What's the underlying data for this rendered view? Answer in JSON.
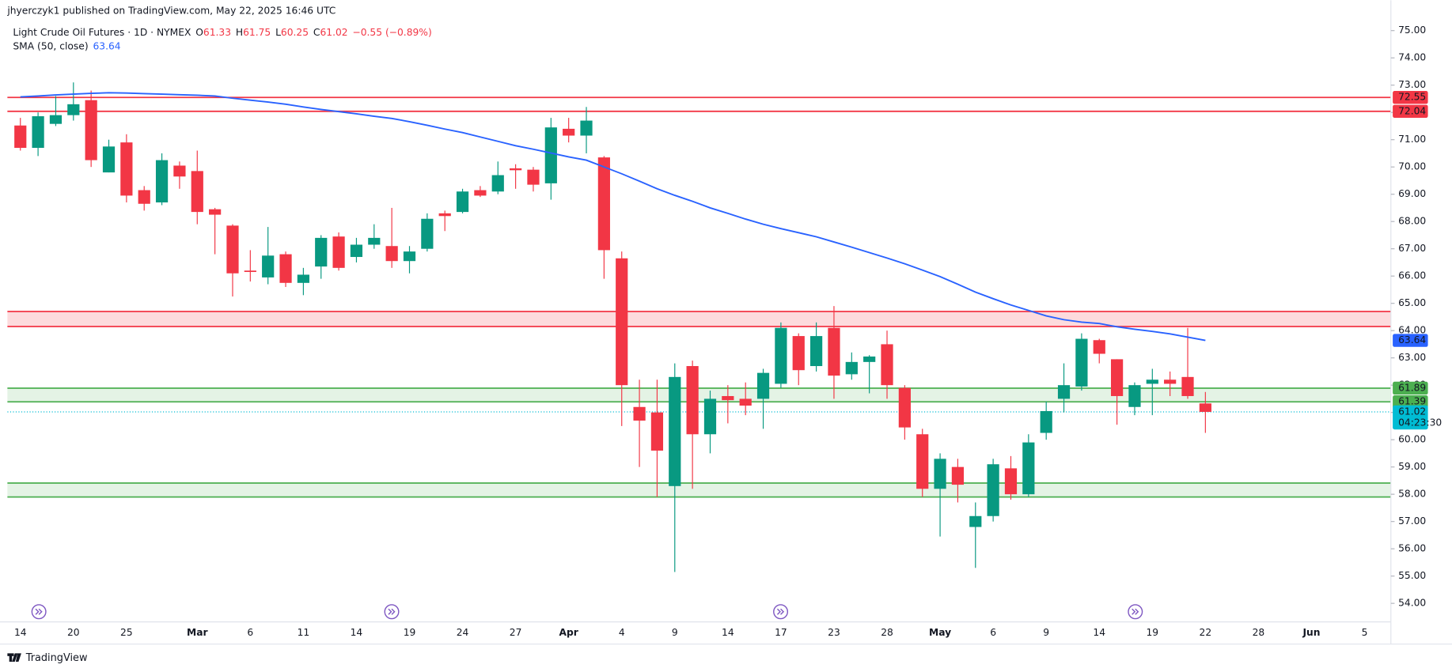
{
  "header": {
    "published": "jhyerczyk1 published on TradingView.com, May 22, 2025 16:46 UTC",
    "symbol": "Light Crude Oil Futures · 1D · NYMEX",
    "fields": [
      {
        "label": "O",
        "value": 61.33
      },
      {
        "label": "H",
        "value": 61.75
      },
      {
        "label": "L",
        "value": 60.25
      },
      {
        "label": "C",
        "value": 61.02
      }
    ],
    "change": "−0.55 (−0.89%)",
    "color": "#f23645",
    "indicator": {
      "name": "SMA (50, close)",
      "value": 63.64,
      "color": "#2962ff"
    }
  },
  "chart_data": {
    "type": "candlestick",
    "open": [
      71.52,
      70.7,
      71.58,
      71.9,
      72.45,
      69.8,
      70.9,
      69.15,
      68.7,
      70.05,
      69.85,
      68.45,
      67.85,
      66.2,
      65.95,
      66.8,
      65.75,
      66.35,
      67.45,
      66.7,
      67.15,
      67.1,
      66.55,
      67.0,
      68.3,
      68.35,
      69.15,
      69.1,
      69.95,
      69.9,
      69.4,
      71.4,
      71.15,
      70.35,
      66.65,
      61.2,
      61.0,
      58.3,
      62.7,
      60.2,
      61.6,
      61.5,
      61.5,
      62.05,
      63.8,
      62.7,
      64.1,
      62.4,
      62.85,
      63.5,
      61.9,
      60.2,
      58.2,
      59.0,
      56.8,
      57.2,
      58.95,
      58.0,
      60.25,
      61.5,
      61.95,
      63.65,
      62.95,
      61.2,
      62.05,
      62.2,
      62.3,
      61.33
    ],
    "high": [
      71.8,
      72.0,
      72.6,
      73.1,
      72.8,
      71.0,
      71.2,
      69.3,
      70.5,
      70.2,
      70.6,
      68.5,
      67.9,
      66.95,
      67.8,
      66.9,
      66.3,
      67.5,
      67.6,
      67.4,
      67.9,
      68.5,
      67.1,
      68.3,
      68.4,
      69.2,
      69.3,
      70.2,
      70.1,
      70.0,
      71.8,
      71.8,
      72.2,
      70.4,
      66.9,
      62.2,
      62.2,
      62.8,
      62.9,
      61.8,
      62.0,
      62.1,
      62.6,
      64.3,
      63.9,
      64.3,
      64.9,
      63.2,
      63.1,
      64.0,
      62.0,
      60.4,
      59.5,
      59.3,
      57.7,
      59.3,
      59.4,
      60.2,
      61.4,
      62.8,
      63.9,
      63.7,
      62.95,
      62.1,
      62.6,
      62.5,
      64.1,
      61.75
    ],
    "low": [
      70.6,
      70.4,
      71.5,
      71.7,
      70.0,
      69.8,
      68.7,
      68.4,
      68.6,
      69.2,
      67.9,
      66.8,
      65.25,
      65.8,
      65.7,
      65.6,
      65.3,
      65.9,
      66.2,
      66.5,
      67.0,
      66.3,
      66.1,
      66.9,
      67.65,
      68.3,
      68.9,
      69.0,
      69.2,
      69.1,
      68.8,
      70.9,
      70.5,
      65.9,
      60.5,
      59.0,
      57.9,
      55.15,
      58.2,
      59.5,
      60.6,
      60.9,
      60.4,
      61.9,
      62.0,
      62.5,
      61.5,
      62.2,
      61.7,
      61.5,
      60.0,
      57.9,
      56.45,
      57.7,
      55.3,
      57.0,
      57.8,
      57.9,
      60.0,
      61.0,
      61.8,
      62.8,
      60.55,
      60.9,
      60.9,
      61.6,
      61.5,
      60.25
    ],
    "close": [
      70.7,
      71.86,
      71.9,
      72.3,
      70.25,
      70.75,
      68.95,
      68.65,
      70.25,
      69.65,
      68.35,
      68.25,
      66.1,
      66.15,
      66.75,
      65.75,
      66.05,
      67.4,
      66.3,
      67.15,
      67.4,
      66.55,
      66.9,
      68.1,
      68.2,
      69.1,
      68.95,
      69.7,
      69.88,
      69.35,
      71.45,
      71.15,
      71.7,
      66.95,
      62.0,
      60.7,
      59.6,
      62.3,
      60.2,
      61.5,
      61.45,
      61.25,
      62.45,
      64.1,
      62.55,
      63.8,
      62.35,
      62.85,
      63.05,
      62.0,
      60.45,
      58.2,
      59.3,
      58.35,
      57.2,
      59.1,
      58.0,
      59.9,
      61.05,
      62.0,
      63.7,
      63.15,
      61.6,
      62.0,
      62.2,
      62.05,
      61.6,
      61.02
    ],
    "up_color": "#089981",
    "down_color": "#f23645",
    "sma": {
      "color": "#2962ff",
      "values": [
        72.57,
        72.6,
        72.64,
        72.67,
        72.7,
        72.72,
        72.71,
        72.69,
        72.67,
        72.65,
        72.63,
        72.6,
        72.52,
        72.45,
        72.38,
        72.3,
        72.2,
        72.11,
        72.03,
        71.95,
        71.86,
        71.78,
        71.66,
        71.53,
        71.39,
        71.26,
        71.1,
        70.94,
        70.78,
        70.65,
        70.51,
        70.37,
        70.25,
        70.0,
        69.75,
        69.48,
        69.2,
        68.96,
        68.74,
        68.5,
        68.3,
        68.09,
        67.9,
        67.74,
        67.59,
        67.44,
        67.25,
        67.06,
        66.86,
        66.66,
        66.45,
        66.22,
        65.98,
        65.7,
        65.41,
        65.17,
        64.94,
        64.74,
        64.54,
        64.4,
        64.31,
        64.26,
        64.14,
        64.05,
        63.97,
        63.88,
        63.76,
        63.64
      ]
    },
    "levels": [
      {
        "value": 72.55,
        "label": "72.55",
        "color": "#f23645"
      },
      {
        "value": 72.04,
        "label": "72.04",
        "color": "#f23645"
      }
    ],
    "zones": [
      {
        "top": 64.7,
        "bottom": 64.15,
        "color": "#f23645",
        "fill": "rgba(242,54,69,0.18)"
      },
      {
        "top": {
          "value": 61.89,
          "label": "61.89"
        },
        "bottom": {
          "value": 61.39,
          "label": "61.39"
        },
        "color": "#4caf50",
        "fill": "rgba(76,175,80,0.15)"
      },
      {
        "top": 58.41,
        "bottom": 57.9,
        "color": "#4caf50",
        "fill": "rgba(76,175,80,0.15)"
      }
    ],
    "last_price": {
      "value": 61.02,
      "label": "61.02",
      "countdown": "04:23:30",
      "color": "#00bcd4"
    },
    "ylim": [
      53.32,
      75.37
    ],
    "yticks": [
      {
        "value": 54,
        "label": "54.00"
      },
      {
        "value": 55,
        "label": "55.00"
      },
      {
        "value": 56,
        "label": "56.00"
      },
      {
        "value": 57,
        "label": "57.00"
      },
      {
        "value": 58,
        "label": "58.00"
      },
      {
        "value": 59,
        "label": "59.00"
      },
      {
        "value": 60,
        "label": "60.00"
      },
      {
        "value": 61,
        "label": "61.00"
      },
      {
        "value": 62,
        "label": "62.00"
      },
      {
        "value": 63,
        "label": "63.00"
      },
      {
        "value": 64,
        "label": "64.00"
      },
      {
        "value": 65,
        "label": "65.00"
      },
      {
        "value": 66,
        "label": "66.00"
      },
      {
        "value": 67,
        "label": "67.00"
      },
      {
        "value": 68,
        "label": "68.00"
      },
      {
        "value": 69,
        "label": "69.00"
      },
      {
        "value": 70,
        "label": "70.00"
      },
      {
        "value": 71,
        "label": "71.00"
      },
      {
        "value": 72,
        "label": "72.00"
      },
      {
        "value": 73,
        "label": "73.00"
      },
      {
        "value": 74,
        "label": "74.00"
      },
      {
        "value": 75,
        "label": "75.00"
      }
    ],
    "xtick_labels": [
      "14",
      "20",
      "25",
      "Mar",
      "6",
      "11",
      "14",
      "19",
      "24",
      "27",
      "Apr",
      "4",
      "9",
      "14",
      "17",
      "23",
      "28",
      "May",
      "6",
      "9",
      "14",
      "19",
      "22",
      "28",
      "Jun",
      "5"
    ]
  },
  "footer": {
    "brand": "TradingView"
  }
}
